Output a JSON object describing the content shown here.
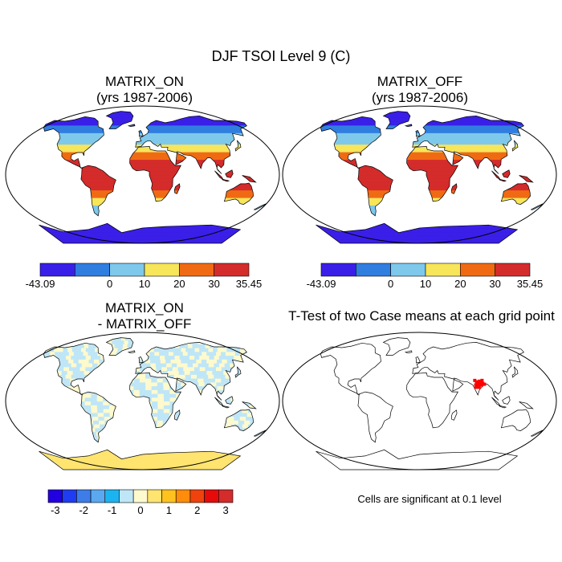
{
  "title": "DJF TSOI Level 9 (C)",
  "panels": [
    {
      "id": "matrix-on",
      "title_line1": "MATRIX_ON",
      "title_line2": "(yrs 1987-2006)",
      "kind": "field"
    },
    {
      "id": "matrix-off",
      "title_line1": "MATRIX_OFF",
      "title_line2": "(yrs 1987-2006)",
      "kind": "field"
    },
    {
      "id": "difference",
      "title_line1": "MATRIX_ON",
      "title_line2": "- MATRIX_OFF",
      "kind": "diff"
    },
    {
      "id": "ttest",
      "title_line1": "T-Test of two Case means at each grid point",
      "title_line2": "",
      "kind": "ttest"
    }
  ],
  "colorbar_field": {
    "colors": [
      "#3a1fe8",
      "#2f7ee0",
      "#7ec8ec",
      "#f7e55a",
      "#f06a14",
      "#d42b2b"
    ],
    "labels": [
      "-43.09",
      "0",
      "10",
      "20",
      "30",
      "35.45"
    ]
  },
  "colorbar_diff": {
    "colors": [
      "#2200e0",
      "#1f3cf0",
      "#3e7de8",
      "#5aa8ef",
      "#1cb4f0",
      "#bfe6f7",
      "#fffacd",
      "#ffe470",
      "#ffc21e",
      "#ff8c0a",
      "#f0420c",
      "#e60a0a",
      "#d42b2b"
    ],
    "labels": [
      "-3",
      "-2",
      "-1",
      "0",
      "1",
      "2",
      "3"
    ]
  },
  "ttest_note": "Cells are significant at 0.1 level",
  "ttest_color": "#ff0000"
}
